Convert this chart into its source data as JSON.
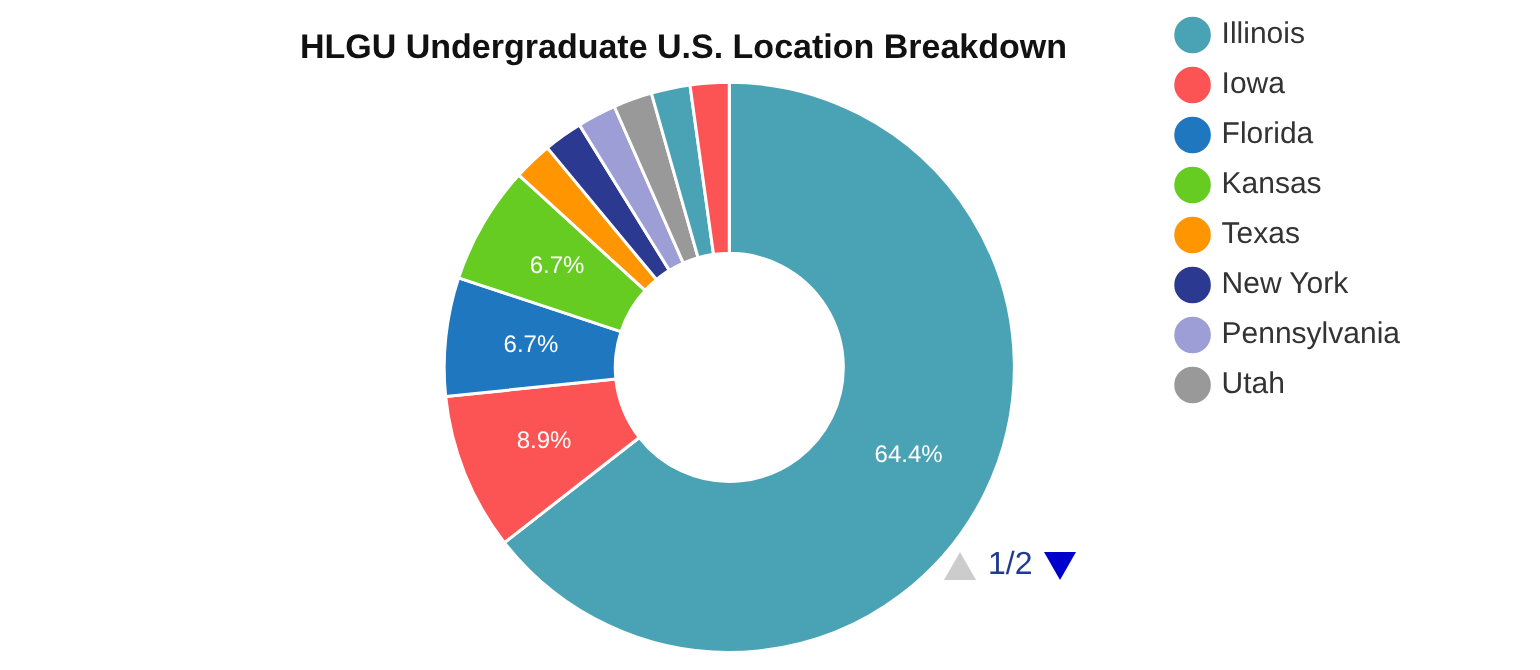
{
  "chart_data": {
    "type": "donut",
    "title": "HLGU Undergraduate U.S. Location Breakdown",
    "categories": [
      "Illinois",
      "Iowa",
      "Florida",
      "Kansas",
      "Texas",
      "New York",
      "Pennsylvania",
      "Utah",
      null,
      null
    ],
    "values": [
      64.4,
      8.9,
      6.7,
      6.7,
      2.2,
      2.2,
      2.2,
      2.2,
      2.2,
      2.2
    ],
    "colors": [
      "#4aa3b5",
      "#fc5454",
      "#1f77bf",
      "#66cc22",
      "#ff9500",
      "#2b3990",
      "#9e9ed6",
      "#999999",
      "#4aa3b5",
      "#fc5454"
    ],
    "value_labels": [
      "64.4%",
      "8.9%",
      "6.7%",
      "6.7%",
      null,
      null,
      null,
      null,
      null,
      null
    ],
    "legend": "right",
    "annotations": [
      "1/2"
    ]
  }
}
